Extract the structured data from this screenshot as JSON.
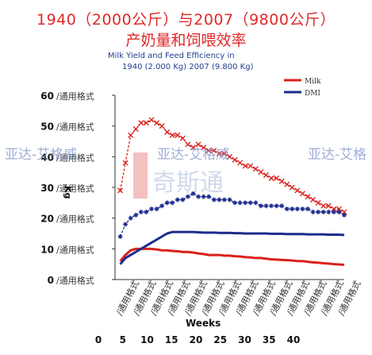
{
  "title_line1": "1940（2000公斤）与2007（9800公斤）",
  "title_line2": "产奶量和饲喂效率",
  "subtitle_line1": "Milk Yield and Feed Efficiency in",
  "subtitle_line2": "1940 (2.000 Kg) 2007 (9.800 Kg)",
  "watermarks": [
    "亚达-艾格威",
    "亚达-艾格威",
    "亚达-艾格"
  ],
  "logo_text": "H 奇斯通",
  "colors": {
    "red": "#d9211d",
    "blue": "#1c2c8c",
    "title": "#e0282a",
    "subtitle": "#1f3f8f"
  },
  "chart_data": {
    "type": "line",
    "xlabel": "Weeks",
    "ylabel": "Kg",
    "ylim": [
      0,
      60
    ],
    "xlim": [
      0,
      44
    ],
    "y_ticks": [
      {
        "value": 0,
        "label": "0"
      },
      {
        "value": 10,
        "label": "10"
      },
      {
        "value": 20,
        "label": "20"
      },
      {
        "value": 30,
        "label": "30"
      },
      {
        "value": 40,
        "label": "40"
      },
      {
        "value": 50,
        "label": "50"
      },
      {
        "value": 60,
        "label": "60"
      }
    ],
    "y_tick_suffix": "/通用格式",
    "x_tick_rotated_labels": [
      "/通用格式",
      "/通用格式",
      "/通用格式",
      "/通用格式",
      "/通用格式",
      "/通用格式",
      "/通用格式",
      "/通用格式",
      "/通用格式",
      "/通用格式",
      "/通用格式",
      "/通用格式",
      "/通用格式",
      "/通用格式"
    ],
    "x_ticks": [
      {
        "value": 0,
        "label": "0"
      },
      {
        "value": 5,
        "label": "5"
      },
      {
        "value": 10,
        "label": "10"
      },
      {
        "value": 15,
        "label": "15"
      },
      {
        "value": 20,
        "label": "20"
      },
      {
        "value": 25,
        "label": "25"
      },
      {
        "value": 30,
        "label": "30"
      },
      {
        "value": 35,
        "label": "35"
      },
      {
        "value": 40,
        "label": "40"
      }
    ],
    "legend": [
      "Milk",
      "DMI"
    ],
    "legend_position": "top-right",
    "series": [
      {
        "name": "Milk",
        "color": "#d9211d",
        "style": "markers-x",
        "x": [
          1,
          2,
          3,
          4,
          5,
          6,
          7,
          8,
          9,
          10,
          11,
          12,
          13,
          14,
          15,
          16,
          17,
          18,
          19,
          20,
          21,
          22,
          23,
          24,
          25,
          26,
          27,
          28,
          29,
          30,
          31,
          32,
          33,
          34,
          35,
          36,
          37,
          38,
          39,
          40,
          41,
          42,
          43,
          44
        ],
        "values": [
          29,
          38,
          47,
          49,
          51,
          51,
          52,
          51,
          50,
          48,
          47,
          47,
          46,
          44,
          43,
          44,
          43,
          42,
          42,
          41,
          41,
          40,
          39,
          38,
          37,
          37,
          36,
          35,
          34,
          33,
          33,
          32,
          31,
          30,
          29,
          28,
          27,
          26,
          25,
          24,
          24,
          23,
          23,
          22
        ]
      },
      {
        "name": "DMI",
        "color": "#1c2c8c",
        "style": "markers-star",
        "x": [
          1,
          2,
          3,
          4,
          5,
          6,
          7,
          8,
          9,
          10,
          11,
          12,
          13,
          14,
          15,
          16,
          17,
          18,
          19,
          20,
          21,
          22,
          23,
          24,
          25,
          26,
          27,
          28,
          29,
          30,
          31,
          32,
          33,
          34,
          35,
          36,
          37,
          38,
          39,
          40,
          41,
          42,
          43,
          44
        ],
        "values": [
          14,
          18,
          20,
          21,
          22,
          22,
          23,
          23,
          24,
          25,
          25,
          26,
          26,
          27,
          28,
          27,
          27,
          27,
          26,
          26,
          26,
          26,
          25,
          25,
          25,
          25,
          25,
          24,
          24,
          24,
          24,
          24,
          23,
          23,
          23,
          23,
          23,
          22,
          22,
          22,
          22,
          22,
          22,
          21
        ]
      },
      {
        "name": "Milk 1940",
        "color": "#d9211d",
        "style": "line",
        "x": [
          1,
          2,
          3,
          4,
          5,
          6,
          7,
          8,
          9,
          10,
          11,
          12,
          13,
          14,
          15,
          16,
          17,
          18,
          19,
          20,
          21,
          22,
          23,
          24,
          25,
          26,
          27,
          28,
          29,
          30,
          31,
          32,
          33,
          34,
          35,
          36,
          37,
          38,
          39,
          40,
          41,
          42,
          43,
          44
        ],
        "values": [
          6,
          8,
          9.5,
          10,
          10,
          10,
          10,
          9.8,
          9.5,
          9.5,
          9.3,
          9.2,
          9,
          9,
          8.8,
          8.5,
          8.3,
          8,
          8,
          8,
          7.8,
          7.8,
          7.6,
          7.5,
          7.3,
          7.2,
          7,
          7,
          6.8,
          6.6,
          6.5,
          6.4,
          6.3,
          6.2,
          6,
          6,
          5.8,
          5.6,
          5.5,
          5.3,
          5.2,
          5,
          4.9,
          4.8
        ]
      },
      {
        "name": "DMI 1940",
        "color": "#1c2c8c",
        "style": "line",
        "x": [
          1,
          2,
          3,
          4,
          5,
          6,
          7,
          8,
          9,
          10,
          11,
          12,
          13,
          14,
          15,
          16,
          17,
          18,
          19,
          20,
          21,
          22,
          23,
          24,
          25,
          26,
          27,
          28,
          29,
          30,
          31,
          32,
          33,
          34,
          35,
          36,
          37,
          38,
          39,
          40,
          41,
          42,
          43,
          44
        ],
        "values": [
          5,
          7,
          8,
          9,
          10,
          11,
          12,
          13,
          14,
          15,
          15.5,
          15.5,
          15.5,
          15.5,
          15.5,
          15.4,
          15.3,
          15.3,
          15.3,
          15.2,
          15.2,
          15.2,
          15.1,
          15.1,
          15,
          15,
          15,
          15,
          15,
          14.9,
          14.9,
          14.9,
          14.8,
          14.8,
          14.8,
          14.8,
          14.7,
          14.7,
          14.7,
          14.7,
          14.6,
          14.6,
          14.6,
          14.5
        ]
      }
    ]
  }
}
